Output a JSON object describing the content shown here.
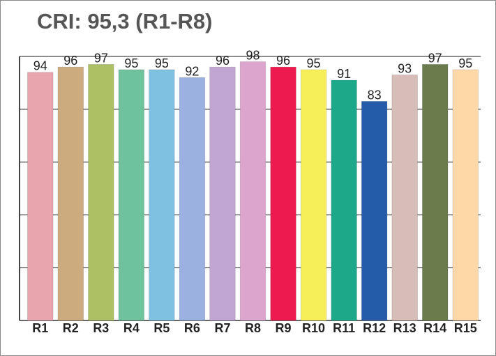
{
  "chart_data": {
    "type": "bar",
    "title": "CRI: 95,3 (R1-R8)",
    "xlabel": "",
    "ylabel": "",
    "categories": [
      "R1",
      "R2",
      "R3",
      "R4",
      "R5",
      "R6",
      "R7",
      "R8",
      "R9",
      "R10",
      "R11",
      "R12",
      "R13",
      "R14",
      "R15"
    ],
    "values": [
      94,
      96,
      97,
      95,
      95,
      92,
      96,
      98,
      96,
      95,
      91,
      83,
      93,
      97,
      95
    ],
    "colors": [
      "#e8a5ae",
      "#ccab7e",
      "#adc064",
      "#6ec39d",
      "#7fc1e0",
      "#9bb1e0",
      "#c1a5d3",
      "#dba5cd",
      "#ec1a4f",
      "#f6ef5a",
      "#1ba98a",
      "#245ca9",
      "#d7bdb8",
      "#6a7c4c",
      "#fed9a7"
    ],
    "ylim": [
      0,
      100
    ],
    "grid": true,
    "data_labels": true,
    "legend": "none"
  }
}
